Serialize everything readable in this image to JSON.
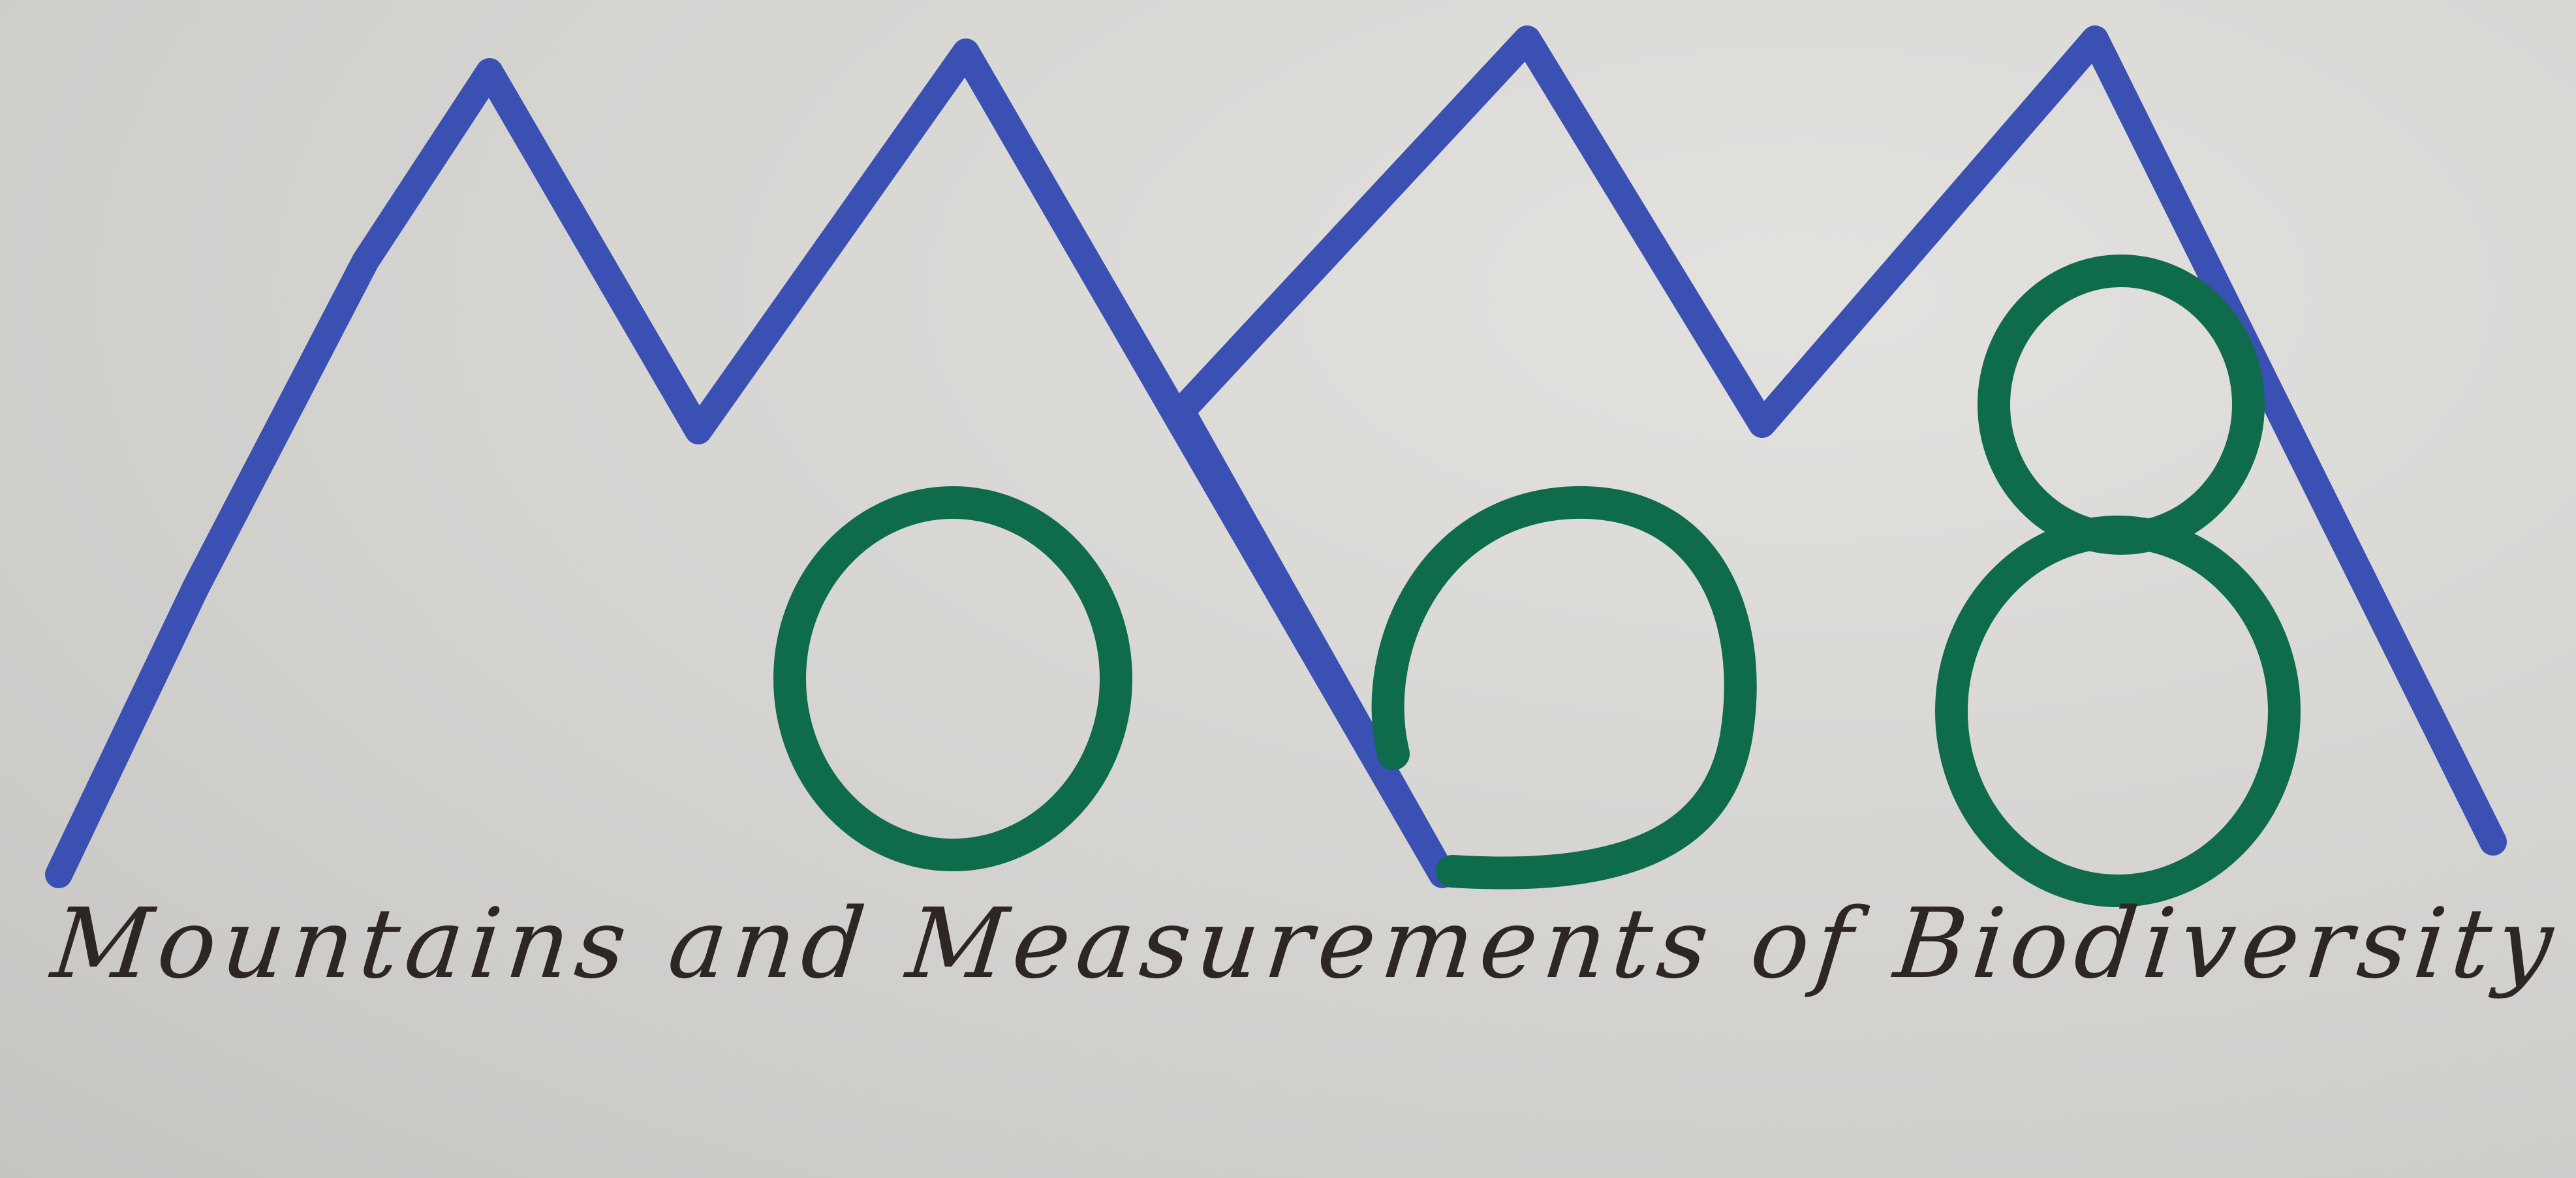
{
  "caption": "Mountains and Measurements of Biodiversity (MoMoB)",
  "colors": {
    "paper": "#d9d7d4",
    "mountains": "#3b50b3",
    "letters": "#0e6b4c",
    "ink": "#2e2622"
  },
  "logo_letters": [
    "o",
    "o",
    "8"
  ]
}
